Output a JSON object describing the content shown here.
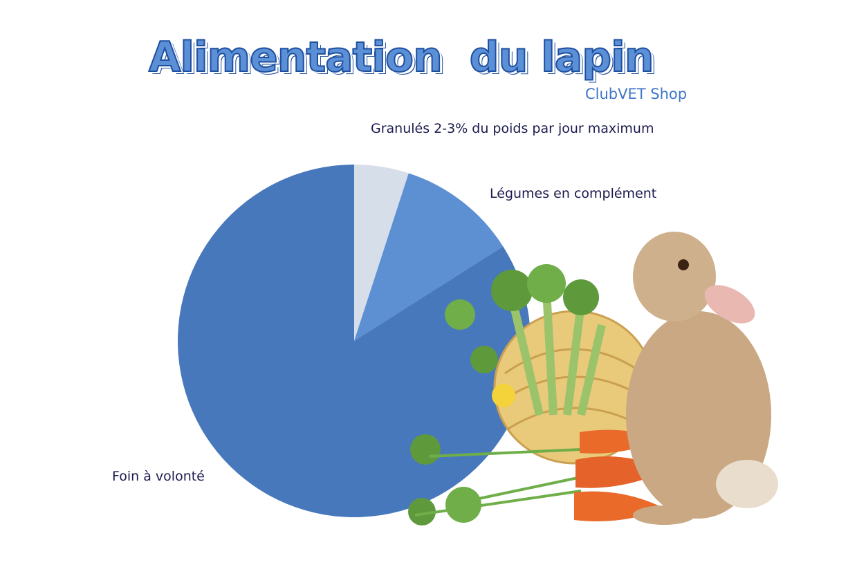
{
  "title": "Alimentation  du lapin",
  "subtitle": "ClubVET Shop",
  "chart_data": {
    "type": "pie",
    "start": "top, clockwise",
    "slices": [
      {
        "label": "Granulés 2-3% du poids par jour maximum",
        "value": 5,
        "color": "#d6dfe9"
      },
      {
        "label": "Légumes en complément",
        "value": 11,
        "color": "#5d8fd3"
      },
      {
        "label": "Foin à volonté",
        "value": 84,
        "color": "#4878bc"
      }
    ]
  },
  "illustration": [
    "rabbit",
    "carrots",
    "hay bale",
    "dandelion"
  ]
}
